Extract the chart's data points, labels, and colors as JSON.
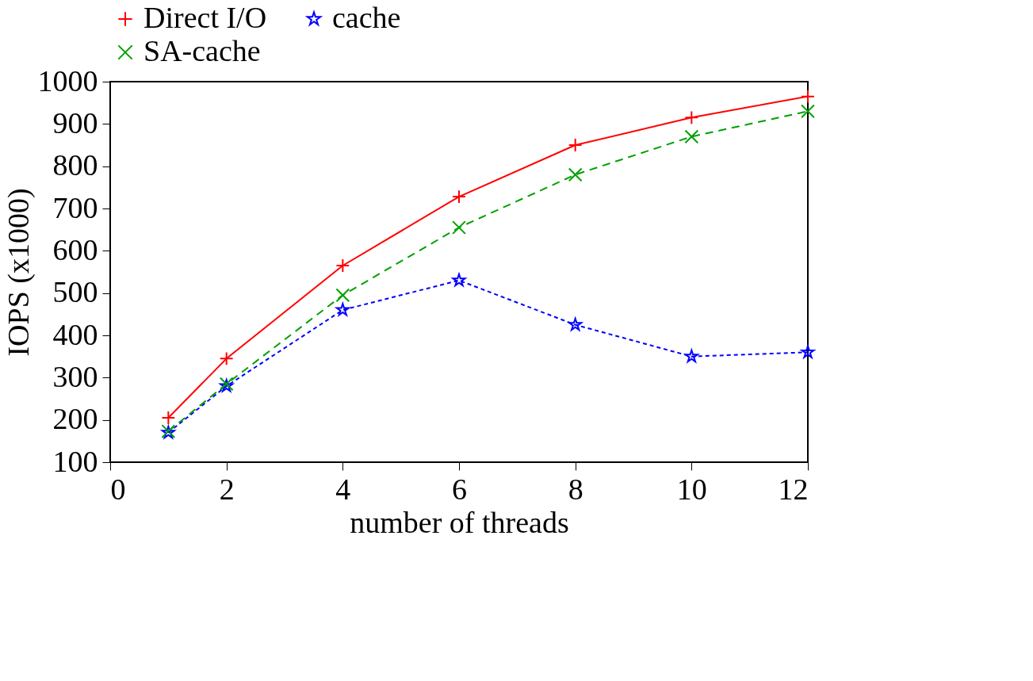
{
  "chart_data": {
    "type": "line",
    "xlabel": "number of threads",
    "ylabel": "IOPS (x1000)",
    "x": [
      1,
      2,
      4,
      6,
      8,
      10,
      12
    ],
    "series": [
      {
        "name": "Direct I/O",
        "color": "#ff0000",
        "marker": "cross",
        "line_style": "solid",
        "values": [
          205,
          345,
          565,
          728,
          850,
          915,
          965
        ]
      },
      {
        "name": "cache",
        "color": "#0000ff",
        "marker": "star",
        "line_style": "dotted",
        "values": [
          170,
          280,
          460,
          530,
          425,
          350,
          360
        ]
      },
      {
        "name": "SA-cache",
        "color": "#00a000",
        "marker": "x",
        "line_style": "dashed",
        "values": [
          173,
          285,
          495,
          655,
          780,
          870,
          930
        ]
      }
    ],
    "xlim": [
      0,
      12
    ],
    "xticks": [
      0,
      2,
      4,
      6,
      8,
      10,
      12
    ],
    "ylim": [
      100,
      1000
    ],
    "yticks": [
      100,
      200,
      300,
      400,
      500,
      600,
      700,
      800,
      900,
      1000
    ],
    "grid": false,
    "legend": "top"
  }
}
